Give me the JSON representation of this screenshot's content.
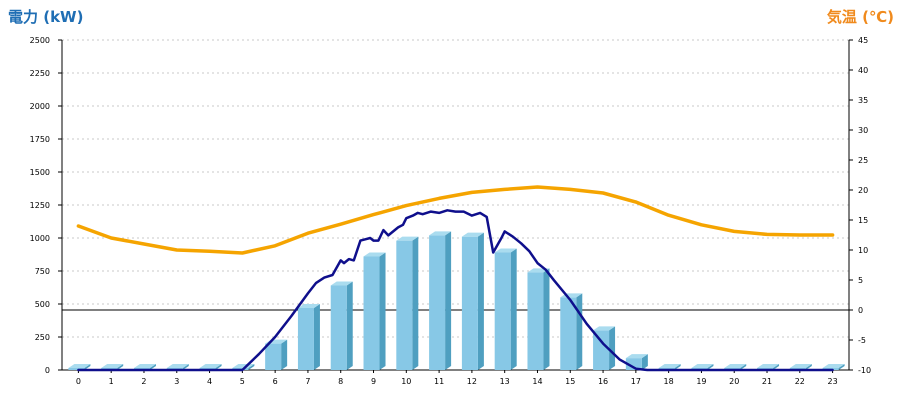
{
  "chart_data": {
    "type": "bar",
    "ylabel_left": "電力 (kW)",
    "ylabel_right": "気温 (℃)",
    "categories": [
      "0",
      "1",
      "2",
      "3",
      "4",
      "5",
      "6",
      "7",
      "8",
      "9",
      "10",
      "11",
      "12",
      "13",
      "14",
      "15",
      "16",
      "17",
      "18",
      "19",
      "20",
      "21",
      "22",
      "23"
    ],
    "ylim_left": [
      0,
      2500
    ],
    "ylim_right": [
      -10,
      45
    ],
    "left_ticks": [
      0,
      250,
      500,
      750,
      1000,
      1250,
      1500,
      1750,
      2000,
      2250,
      2500
    ],
    "right_ticks": [
      -10,
      -5,
      0,
      5,
      10,
      15,
      20,
      25,
      30,
      35,
      40,
      45
    ],
    "grid": true,
    "series": [
      {
        "kind": "bar",
        "axis": "left",
        "color": "#87c8e6",
        "values": [
          0,
          0,
          0,
          0,
          0,
          10,
          200,
          470,
          640,
          860,
          980,
          1020,
          1010,
          890,
          740,
          550,
          300,
          90,
          0,
          0,
          0,
          0,
          0,
          0
        ]
      },
      {
        "kind": "line",
        "axis": "left",
        "color": "#0f0f8c",
        "x": [
          0,
          5,
          5.5,
          6,
          6.5,
          7,
          7.25,
          7.5,
          7.75,
          8,
          8.1,
          8.25,
          8.4,
          8.6,
          8.75,
          8.9,
          9,
          9.15,
          9.3,
          9.45,
          9.6,
          9.75,
          9.9,
          10,
          10.2,
          10.35,
          10.5,
          10.75,
          11,
          11.25,
          11.5,
          11.75,
          12,
          12.25,
          12.45,
          12.65,
          12.9,
          13,
          13.25,
          13.5,
          13.75,
          14,
          14.25,
          14.5,
          15,
          15.5,
          16,
          16.5,
          17,
          17.35,
          17.5,
          23
        ],
        "values": [
          0,
          0,
          120,
          250,
          410,
          580,
          660,
          700,
          720,
          830,
          810,
          840,
          830,
          980,
          990,
          1000,
          980,
          980,
          1060,
          1020,
          1050,
          1080,
          1100,
          1150,
          1170,
          1190,
          1180,
          1200,
          1190,
          1210,
          1200,
          1200,
          1170,
          1190,
          1160,
          890,
          1000,
          1050,
          1010,
          960,
          900,
          810,
          760,
          680,
          530,
          350,
          200,
          80,
          10,
          0,
          0,
          0
        ]
      },
      {
        "kind": "line",
        "axis": "right",
        "color": "#f5a400",
        "values": [
          14,
          12,
          11,
          10,
          9.8,
          9.5,
          10.7,
          12.8,
          14.3,
          15.9,
          17.4,
          18.6,
          19.6,
          20.1,
          20.5,
          20.1,
          19.5,
          18,
          15.8,
          14.2,
          13.1,
          12.6,
          12.5,
          12.5
        ]
      }
    ]
  }
}
